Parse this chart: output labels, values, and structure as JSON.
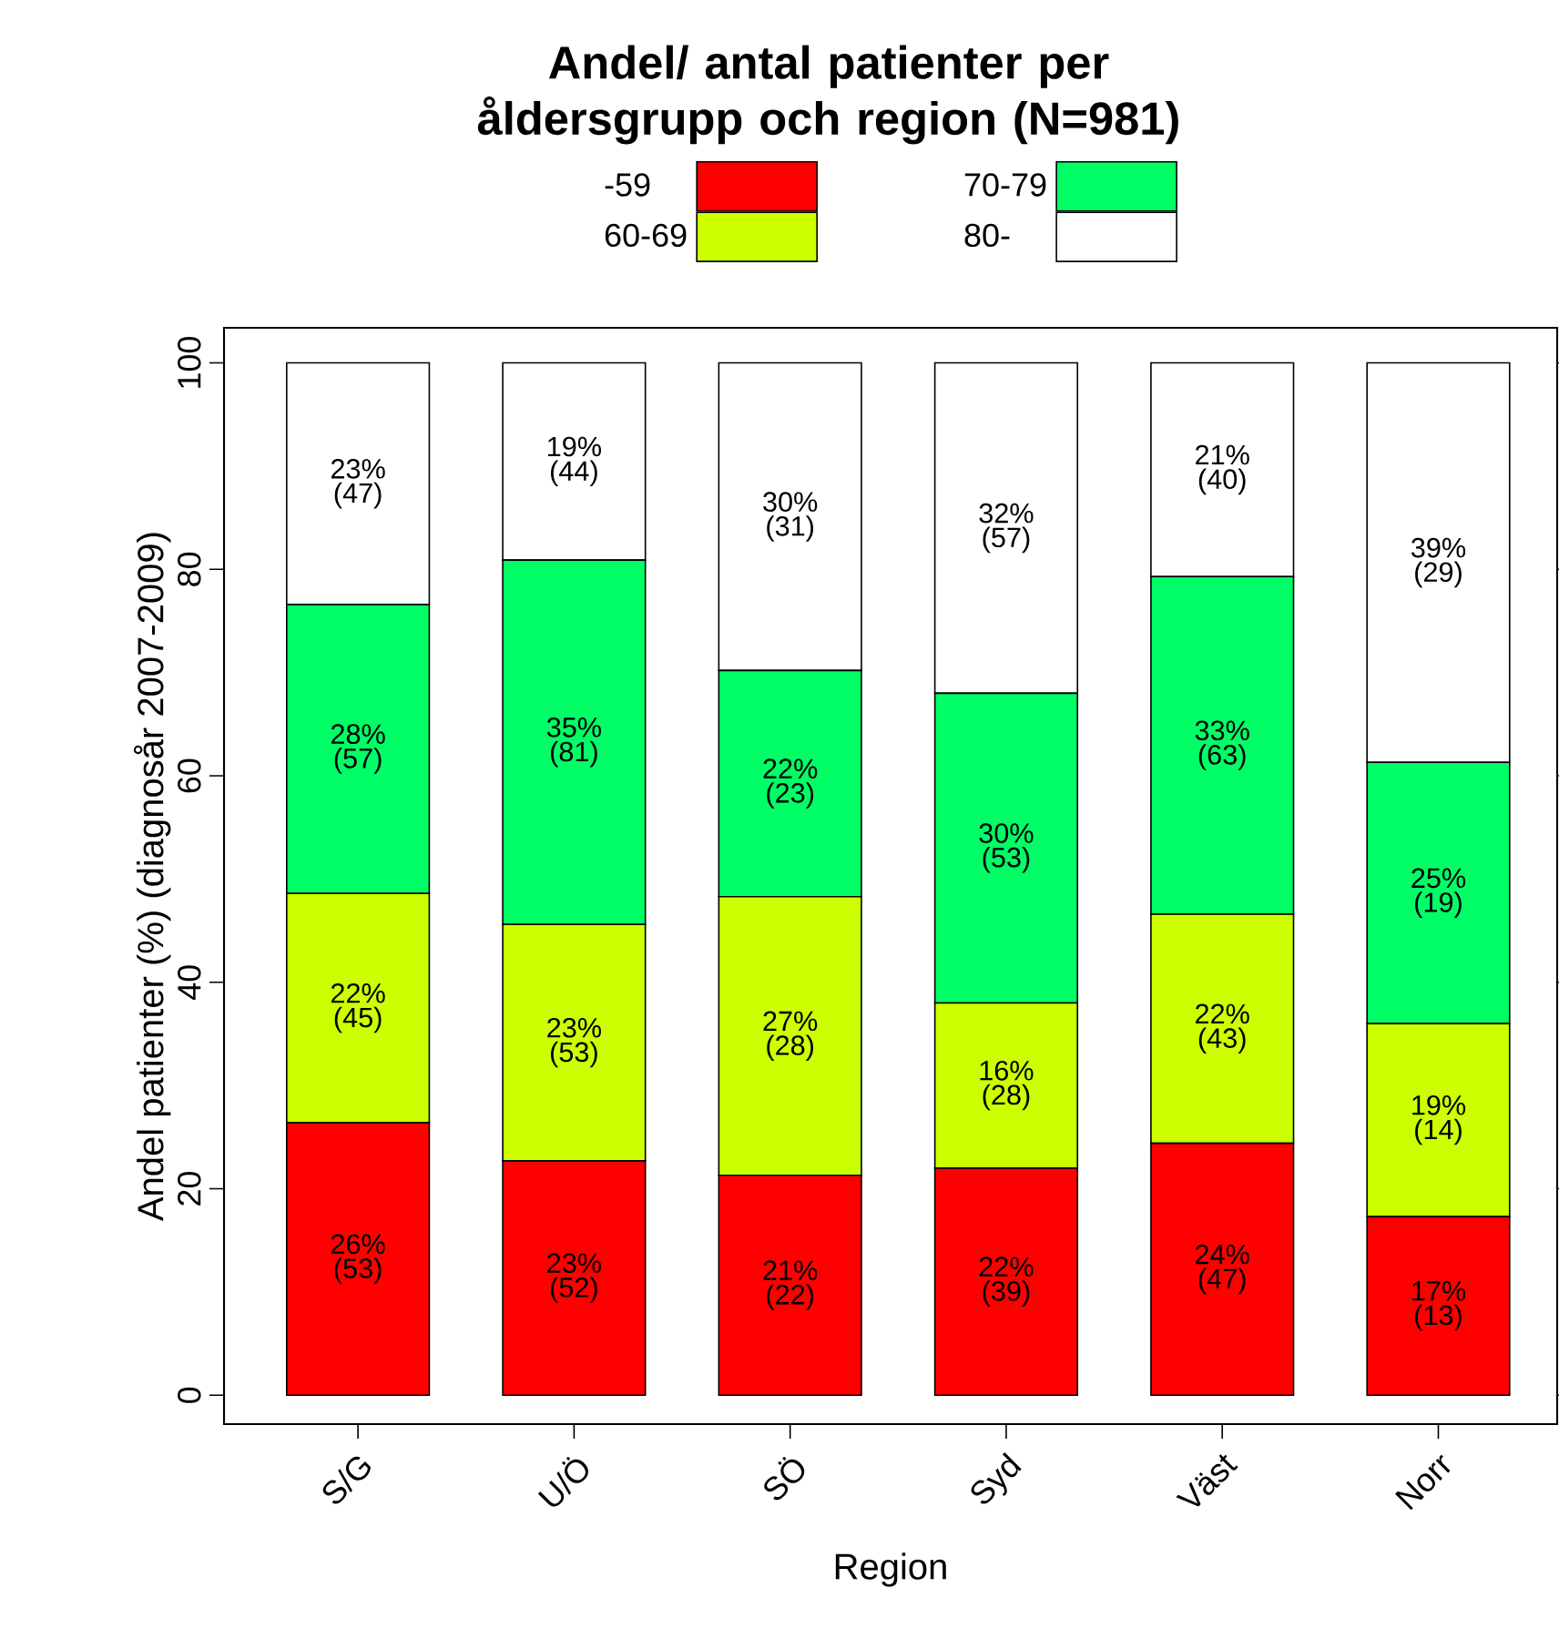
{
  "chart_data": {
    "type": "bar",
    "title": "Andel/ antal patienter per åldersgrupp och region (N=981)",
    "xlabel": "Region",
    "ylabel": "Andel patienter (%) (diagnosår 2007-2009)",
    "categories": [
      "S/G",
      "U/Ö",
      "SÖ",
      "Syd",
      "Väst",
      "Norr"
    ],
    "stacked": true,
    "ylim": [
      -2.8,
      103.4
    ],
    "yticks": [
      0,
      20,
      40,
      60,
      80,
      100
    ],
    "legend": "top",
    "series": [
      {
        "name": "-59",
        "color": "#ff0000",
        "values": [
          26.4,
          22.7,
          21.3,
          22.0,
          24.4,
          17.3
        ],
        "value_labels": [
          "26% (53)",
          "23% (52)",
          "21% (22)",
          "22% (39)",
          "24% (47)",
          "17% (13)"
        ]
      },
      {
        "name": "60-69",
        "color": "#ccff00",
        "values": [
          22.2,
          22.9,
          27.0,
          16.0,
          22.2,
          18.7
        ],
        "value_labels": [
          "22% (45)",
          "23% (53)",
          "27% (28)",
          "16% (28)",
          "22% (43)",
          "19% (14)"
        ]
      },
      {
        "name": "70-79",
        "color": "#00ff66",
        "values": [
          28.0,
          35.3,
          21.9,
          30.0,
          32.7,
          25.3
        ],
        "value_labels": [
          "28% (57)",
          "35% (81)",
          "22% (23)",
          "30% (53)",
          "33% (63)",
          "25% (19)"
        ]
      },
      {
        "name": "80-",
        "color": "#ffffff",
        "values": [
          23.4,
          19.1,
          29.8,
          32.0,
          20.7,
          38.7
        ],
        "value_labels": [
          "23% (47)",
          "19% (44)",
          "30% (31)",
          "32% (57)",
          "21% (40)",
          "39% (29)"
        ]
      }
    ]
  }
}
